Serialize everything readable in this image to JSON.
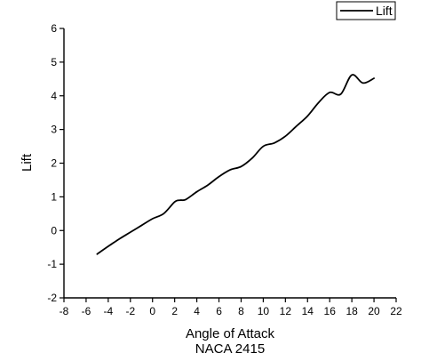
{
  "chart_data": {
    "type": "line",
    "title": "",
    "xlabel": "Angle of Attack",
    "subtitle_below_xlabel": "NACA 2415",
    "ylabel": "Lift",
    "xlim": [
      -8,
      22
    ],
    "ylim": [
      -2,
      6
    ],
    "x_ticks": [
      -8,
      -6,
      -4,
      -2,
      0,
      2,
      4,
      6,
      8,
      10,
      12,
      14,
      16,
      18,
      20,
      22
    ],
    "y_ticks": [
      -2,
      -1,
      0,
      1,
      2,
      3,
      4,
      5,
      6
    ],
    "grid": false,
    "legend": {
      "position": "top-right",
      "entries": [
        "Lift"
      ]
    },
    "series": [
      {
        "name": "Lift",
        "color": "#000000",
        "x": [
          -5,
          -4,
          -3,
          -2,
          -1,
          0,
          1,
          2,
          2.5,
          3,
          4,
          5,
          6,
          7,
          8,
          9,
          10,
          11,
          12,
          13,
          14,
          15,
          16,
          17,
          18,
          19,
          20
        ],
        "y": [
          -0.7,
          -0.47,
          -0.25,
          -0.05,
          0.15,
          0.35,
          0.5,
          0.85,
          0.9,
          0.92,
          1.15,
          1.35,
          1.6,
          1.8,
          1.9,
          2.15,
          2.5,
          2.6,
          2.8,
          3.1,
          3.4,
          3.8,
          4.1,
          4.05,
          4.62,
          4.38,
          4.52
        ]
      }
    ]
  }
}
